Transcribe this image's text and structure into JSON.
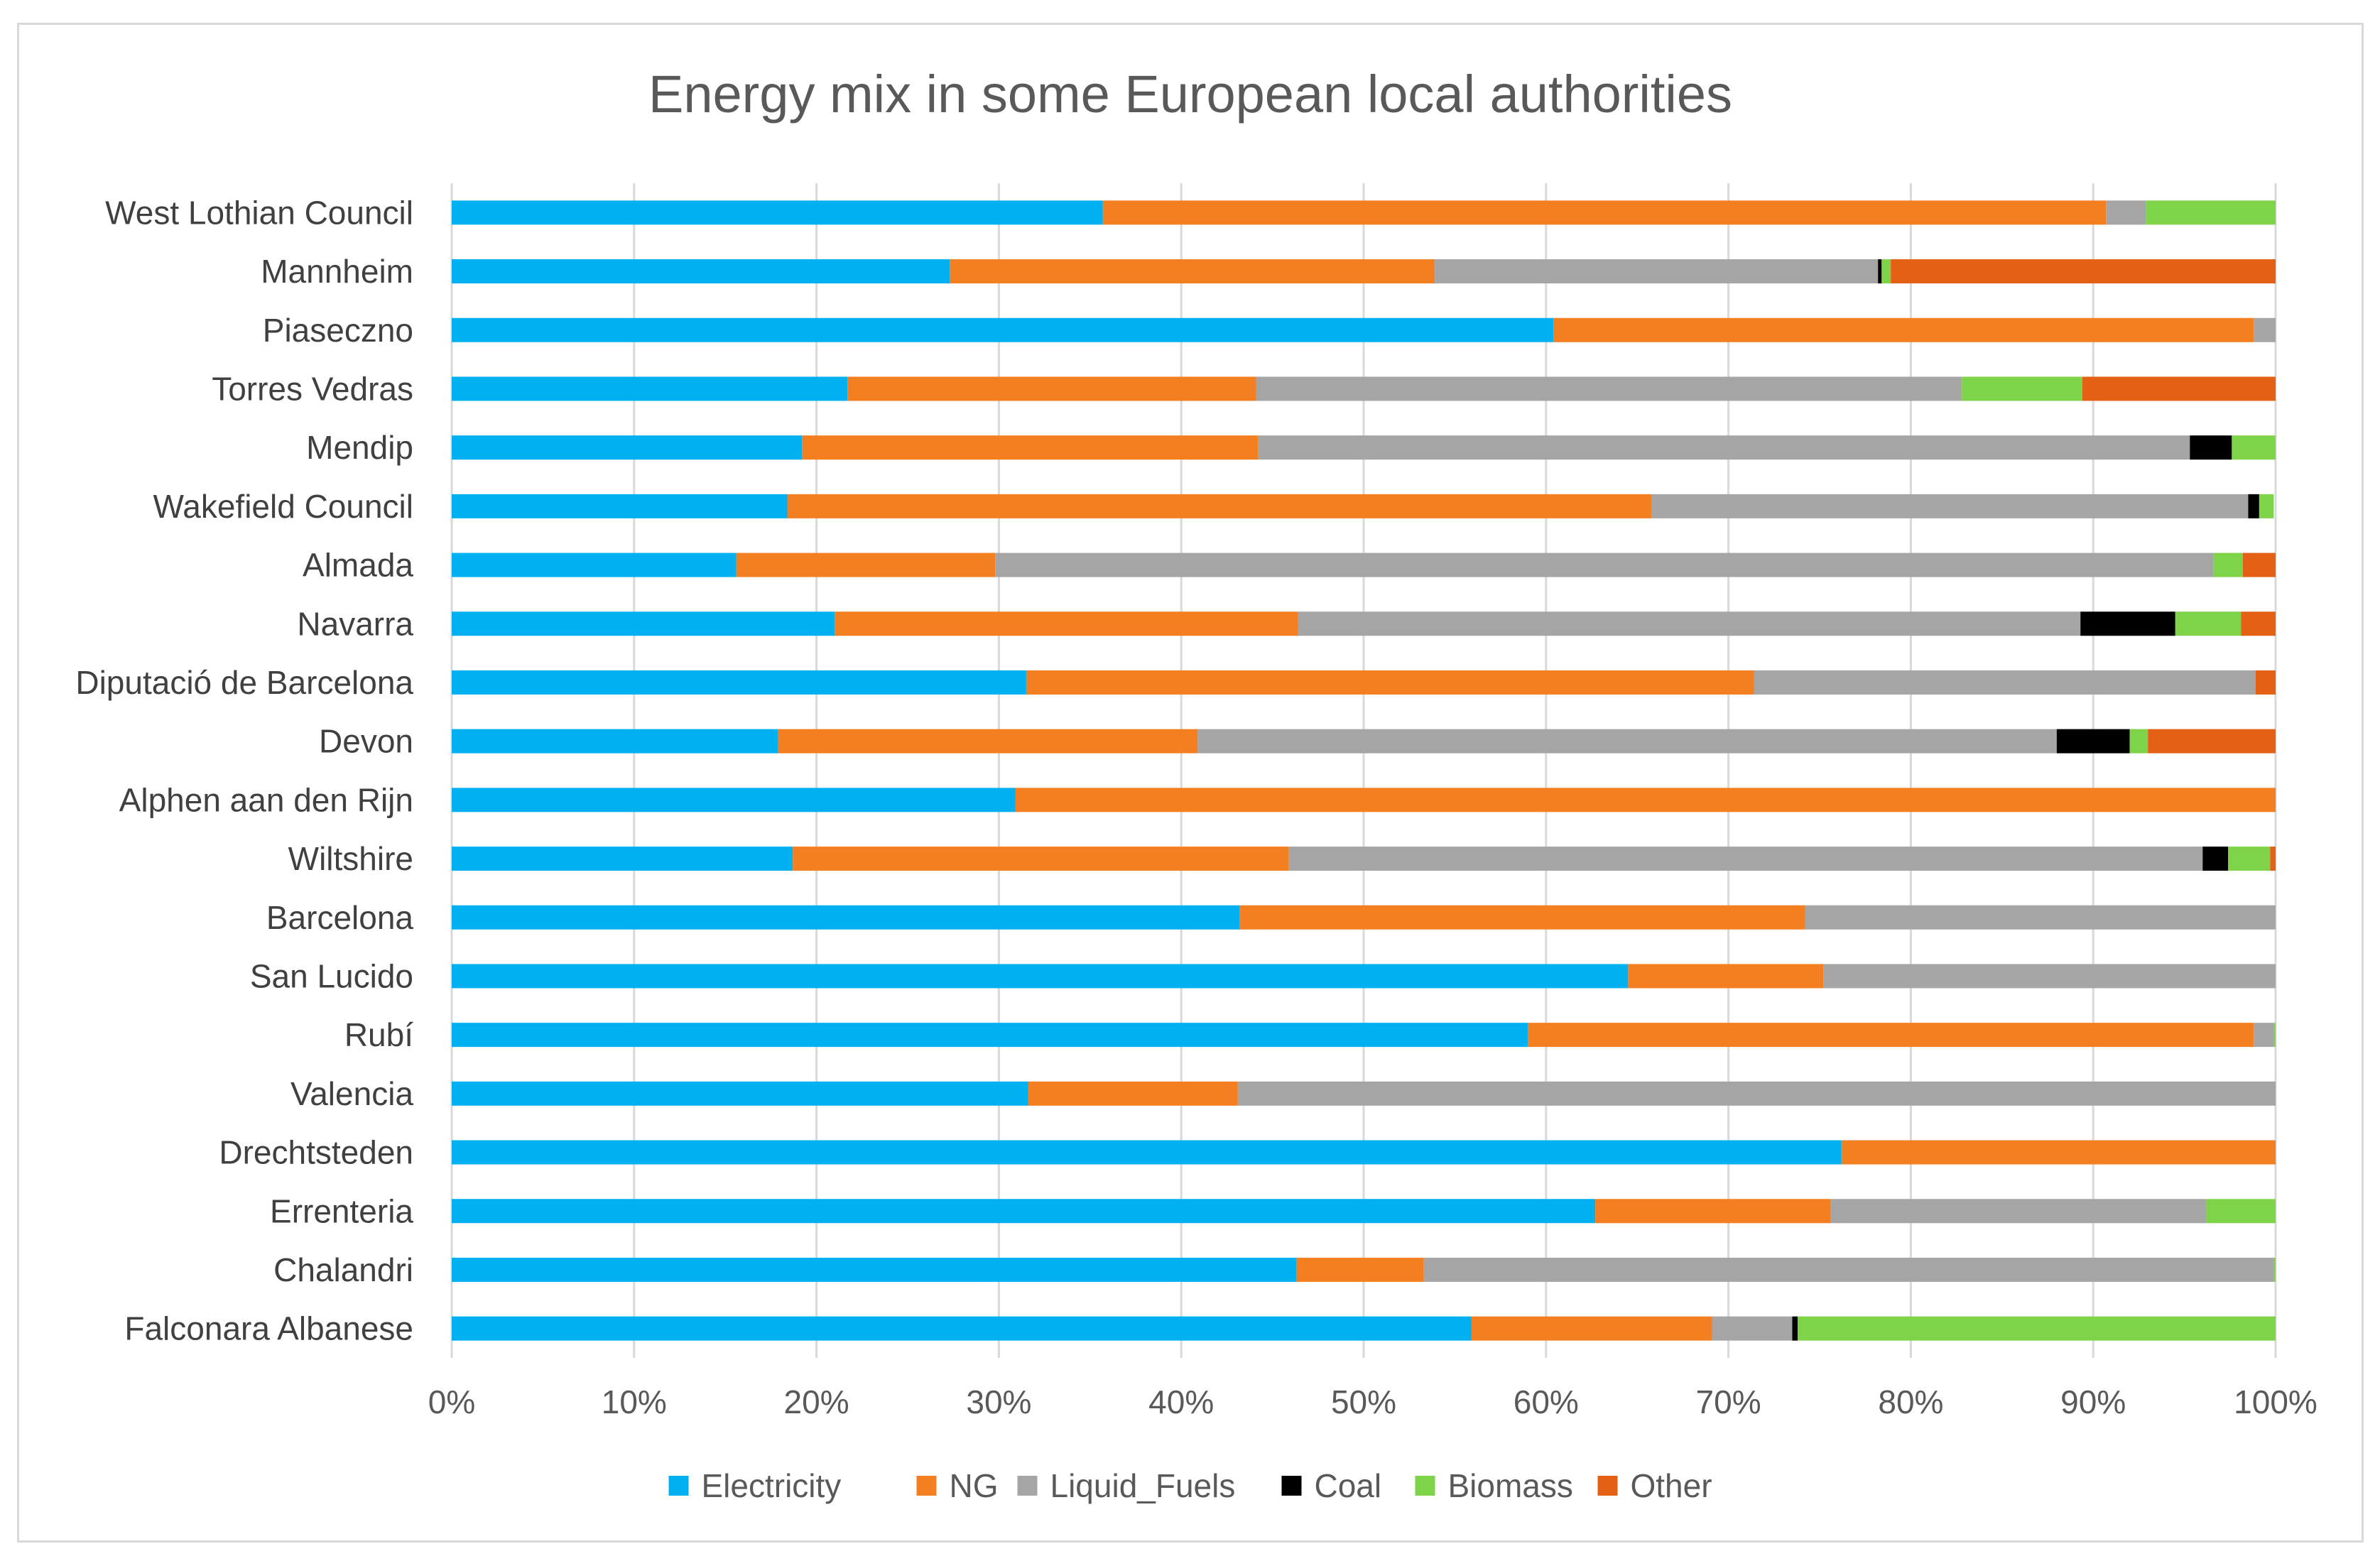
{
  "chart_data": {
    "type": "bar",
    "orientation": "horizontal",
    "stacked": "percent",
    "title": "Energy mix in some European local authorities",
    "xlabel": "",
    "ylabel": "",
    "xlim": [
      0,
      100
    ],
    "x_ticks": [
      "0%",
      "10%",
      "20%",
      "30%",
      "40%",
      "50%",
      "60%",
      "70%",
      "80%",
      "90%",
      "100%"
    ],
    "grid": "vertical",
    "legend_position": "bottom",
    "categories": [
      "West Lothian Council",
      "Mannheim",
      "Piaseczno",
      "Torres Vedras",
      "Mendip",
      "Wakefield Council",
      "Almada",
      "Navarra",
      "Diputació de Barcelona",
      "Devon",
      "Alphen aan den Rijn",
      "Wiltshire",
      "Barcelona",
      "San Lucido",
      "Rubí",
      "Valencia",
      "Drechtsteden",
      "Errenteria",
      "Chalandri",
      "Falconara Albanese"
    ],
    "series": [
      {
        "name": "Electricity",
        "color": "#00b0f0",
        "values": [
          35.7,
          27.3,
          60.4,
          21.7,
          19.2,
          18.4,
          15.6,
          21.0,
          31.5,
          17.9,
          30.9,
          18.7,
          43.2,
          64.5,
          59.0,
          31.6,
          76.2,
          62.7,
          46.3,
          55.9
        ]
      },
      {
        "name": "NG",
        "color": "#f47f20",
        "values": [
          55.0,
          26.6,
          38.4,
          22.4,
          25.0,
          47.4,
          14.2,
          25.4,
          39.9,
          23.0,
          69.1,
          27.2,
          31.0,
          10.7,
          39.8,
          11.5,
          23.8,
          12.9,
          7.0,
          13.2
        ]
      },
      {
        "name": "Liquid_Fuels",
        "color": "#a5a5a5",
        "values": [
          2.2,
          24.3,
          1.2,
          38.7,
          51.1,
          32.7,
          66.8,
          42.9,
          27.5,
          47.1,
          0.0,
          50.1,
          25.8,
          24.8,
          1.1,
          56.9,
          0.0,
          20.6,
          46.6,
          4.4
        ]
      },
      {
        "name": "Coal",
        "color": "#000000",
        "values": [
          0.0,
          0.2,
          0.0,
          0.0,
          2.3,
          0.6,
          0.0,
          5.2,
          0.0,
          4.0,
          0.0,
          1.4,
          0.0,
          0.0,
          0.0,
          0.0,
          0.0,
          0.0,
          0.0,
          0.3
        ]
      },
      {
        "name": "Biomass",
        "color": "#7ed348",
        "values": [
          7.1,
          0.5,
          0.0,
          6.6,
          2.4,
          0.8,
          1.6,
          3.6,
          0.0,
          1.0,
          0.0,
          2.3,
          0.0,
          0.0,
          0.1,
          0.0,
          0.0,
          3.8,
          0.1,
          26.2
        ]
      },
      {
        "name": "Other",
        "color": "#e36014",
        "values": [
          0.0,
          21.1,
          0.0,
          10.6,
          0.0,
          0.0,
          1.8,
          1.9,
          1.1,
          7.0,
          0.0,
          0.3,
          0.0,
          0.0,
          0.0,
          0.0,
          0.0,
          0.0,
          0.0,
          0.0
        ]
      }
    ]
  }
}
